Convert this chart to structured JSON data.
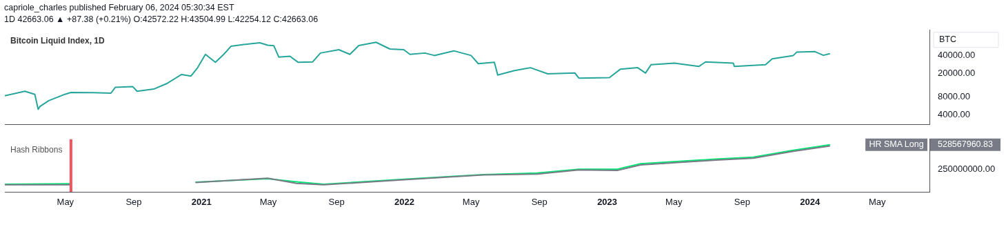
{
  "chart_data": [
    {
      "type": "line",
      "title": "Bitcoin Liquid Index, 1D",
      "ylabel": "BTC",
      "log": true,
      "tick_labels": "y",
      "annotations": [
        "capriole_charles published February 06, 2024 05:30:34 EST",
        "1D  42663.06 ▲ +87.38 (+0.21%)  O:42572.22  H:43504.99  L:42254.12  C:42663.06"
      ],
      "xlim": [
        "2020-01-13",
        "2024-08-03"
      ],
      "ylim": [
        2800,
        105000
      ],
      "yticks": [
        {
          "value": 4000,
          "label": "4000.00"
        },
        {
          "value": 8000,
          "label": "8000.00"
        },
        {
          "value": 20000,
          "label": "20000.00"
        },
        {
          "value": 40000,
          "label": "40000.00"
        }
      ],
      "x": [
        "2020-01-13",
        "2020-02-18",
        "2020-03-07",
        "2020-03-13",
        "2020-03-16",
        "2020-04-01",
        "2020-04-30",
        "2020-05-11",
        "2020-06-19",
        "2020-07-22",
        "2020-07-30",
        "2020-08-30",
        "2020-09-07",
        "2020-10-07",
        "2020-10-30",
        "2020-11-26",
        "2020-12-13",
        "2020-12-25",
        "2021-01-08",
        "2021-01-26",
        "2021-02-10",
        "2021-02-23",
        "2021-03-18",
        "2021-04-16",
        "2021-04-30",
        "2021-05-11",
        "2021-05-20",
        "2021-06-09",
        "2021-06-24",
        "2021-07-20",
        "2021-08-03",
        "2021-09-05",
        "2021-09-25",
        "2021-10-11",
        "2021-11-11",
        "2021-12-06",
        "2021-12-31",
        "2022-01-11",
        "2022-02-07",
        "2022-02-24",
        "2022-03-31",
        "2022-05-01",
        "2022-05-14",
        "2022-06-12",
        "2022-06-18",
        "2022-07-17",
        "2022-08-16",
        "2022-09-16",
        "2022-11-04",
        "2022-11-11",
        "2023-01-05",
        "2023-01-25",
        "2023-02-25",
        "2023-03-11",
        "2023-03-21",
        "2023-05-02",
        "2023-06-15",
        "2023-06-27",
        "2023-08-16",
        "2023-08-18",
        "2023-10-13",
        "2023-10-25",
        "2023-12-02",
        "2023-12-08",
        "2024-01-10",
        "2024-01-25",
        "2024-02-06"
      ],
      "series": [
        {
          "color": "#26a69a",
          "values": [
            8400,
            10000,
            8900,
            5000,
            5550,
            6970,
            8900,
            9570,
            9500,
            9300,
            11700,
            12000,
            10000,
            10900,
            13400,
            19100,
            18000,
            24800,
            41500,
            30500,
            41500,
            56600,
            60600,
            64700,
            59000,
            58000,
            37400,
            38600,
            30500,
            31000,
            43600,
            49600,
            41500,
            58300,
            66000,
            51000,
            49600,
            41500,
            43600,
            39700,
            47500,
            39700,
            29000,
            30600,
            18700,
            22100,
            24800,
            19600,
            20200,
            16600,
            16900,
            23500,
            24800,
            20200,
            27800,
            29500,
            26000,
            31000,
            29500,
            26000,
            27800,
            35000,
            39700,
            45100,
            46000,
            40000,
            42663.06
          ]
        }
      ]
    },
    {
      "type": "line",
      "title": "Hash Ribbons",
      "log": true,
      "tick_labels": "xy",
      "xlim": [
        "2020-01-13",
        "2024-08-03"
      ],
      "ylim": [
        125000000,
        625000000
      ],
      "xticks": [
        {
          "value": "2020-05",
          "label": "May"
        },
        {
          "value": "2020-09",
          "label": "Sep"
        },
        "2021",
        {
          "value": "2021-05",
          "label": "May"
        },
        {
          "value": "2021-09",
          "label": "Sep"
        },
        "2022",
        {
          "value": "2022-05",
          "label": "May"
        },
        {
          "value": "2022-09",
          "label": "Sep"
        },
        "2023",
        {
          "value": "2023-05",
          "label": "May"
        },
        {
          "value": "2023-09",
          "label": "Sep"
        },
        "2024",
        {
          "value": "2024-05",
          "label": "May"
        }
      ],
      "yticks": [
        {
          "value": 250000000,
          "label": "250000000.00"
        },
        528567960.83
      ],
      "ref_lines": [
        {
          "axis": "x",
          "value": "2020-05-11",
          "color": "#f7525f"
        }
      ],
      "x": [
        "2020-01-13",
        "2020-05-11",
        "2020-08-09",
        "2020-12-21",
        "2021-04-30",
        "2021-06-21",
        "2021-08-09",
        "2021-12-26",
        "2022-05-23",
        "2022-08-28",
        "2022-11-11",
        "2023-01-19",
        "2023-03-02",
        "2023-07-16",
        "2023-09-21",
        "2023-11-30",
        "2024-02-06"
      ],
      "series": [
        {
          "color": "#787b86",
          "values": [
            155000000,
            155000000,
            null,
            166000000,
            190000000,
            162000000,
            155000000,
            180000000,
            210000000,
            215000000,
            245000000,
            240000000,
            285000000,
            330000000,
            350000000,
            430000000,
            510000000
          ]
        },
        {
          "name": "HR SMA Long",
          "color": "#00e676",
          "values": [
            158000000,
            160000000,
            null,
            168000000,
            187000000,
            170000000,
            158000000,
            183000000,
            212000000,
            222000000,
            250000000,
            250000000,
            295000000,
            341000000,
            361000000,
            444000000,
            528567960.83
          ]
        }
      ]
    }
  ]
}
